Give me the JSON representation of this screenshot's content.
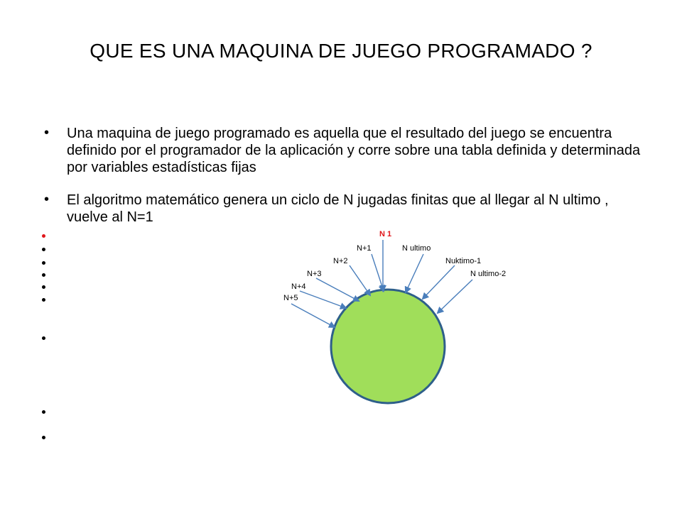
{
  "slide": {
    "title": "QUE ES UNA MAQUINA DE JUEGO PROGRAMADO ?",
    "bullets": [
      "Una maquina de juego programado es aquella  que el resultado del juego se encuentra definido por el programador de la aplicación   y corre sobre una tabla definida  y determinada por variables estadísticas fijas",
      "El algoritmo matemático genera un ciclo de N jugadas  finitas que al llegar al N ultimo , vuelve al N=1"
    ]
  },
  "diagram": {
    "labels": {
      "n1": "N 1",
      "np1": "N+1",
      "nultimo": "N ultimo",
      "np2": "N+2",
      "nuktimo": "Nuktimo-1",
      "np3": "N+3",
      "nultimo2": "N ultimo-2",
      "np4": "N+4",
      "np5": "N+5"
    },
    "circle_fill": "#a0de5a",
    "circle_stroke": "#2e5f8a",
    "arrow_color": "#4a7ebb",
    "highlight_color": "#e0161a"
  }
}
